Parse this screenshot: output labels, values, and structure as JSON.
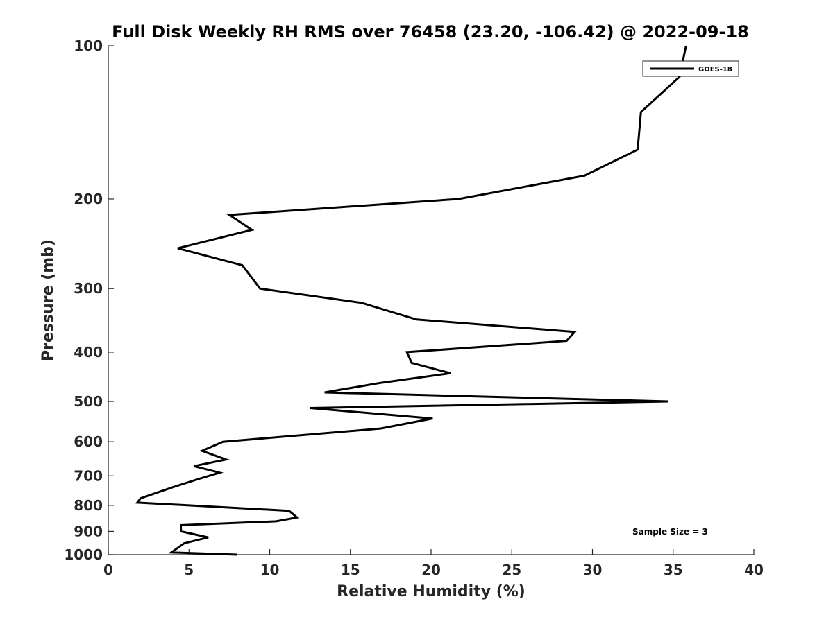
{
  "chart_data": {
    "type": "line",
    "title": "Full Disk Weekly RH RMS over 76458 (23.20, -106.42) @ 2022-09-18",
    "xlabel": "Relative Humidity (%)",
    "ylabel": "Pressure (mb)",
    "xlim": [
      0,
      40
    ],
    "ylim": [
      100,
      1000
    ],
    "y_scale": "log",
    "y_reversed": true,
    "grid": false,
    "legend_position": "top-right",
    "x_ticks": [
      "0",
      "5",
      "10",
      "15",
      "20",
      "25",
      "30",
      "35",
      "40"
    ],
    "y_ticks": [
      "100",
      "200",
      "300",
      "400",
      "500",
      "600",
      "700",
      "800",
      "900",
      "1000"
    ],
    "annotation": "Sample Size = 3",
    "series": [
      {
        "name": "GOES-18",
        "color": "#000000",
        "points": [
          [
            35.8,
            100
          ],
          [
            35.4,
            115
          ],
          [
            33.0,
            135
          ],
          [
            32.8,
            160
          ],
          [
            29.5,
            180
          ],
          [
            21.7,
            200
          ],
          [
            7.5,
            215
          ],
          [
            8.9,
            230
          ],
          [
            4.3,
            250
          ],
          [
            8.3,
            270
          ],
          [
            9.4,
            300
          ],
          [
            15.7,
            320
          ],
          [
            19.1,
            345
          ],
          [
            28.9,
            365
          ],
          [
            28.4,
            380
          ],
          [
            18.5,
            400
          ],
          [
            18.8,
            420
          ],
          [
            21.2,
            440
          ],
          [
            16.8,
            460
          ],
          [
            13.4,
            480
          ],
          [
            34.7,
            500
          ],
          [
            12.5,
            515
          ],
          [
            20.1,
            540
          ],
          [
            16.9,
            565
          ],
          [
            7.1,
            600
          ],
          [
            5.8,
            625
          ],
          [
            7.3,
            650
          ],
          [
            5.3,
            670
          ],
          [
            6.9,
            690
          ],
          [
            5.6,
            710
          ],
          [
            4.1,
            735
          ],
          [
            2.0,
            775
          ],
          [
            1.8,
            790
          ],
          [
            11.2,
            820
          ],
          [
            11.7,
            845
          ],
          [
            10.4,
            860
          ],
          [
            4.5,
            875
          ],
          [
            4.5,
            900
          ],
          [
            6.2,
            925
          ],
          [
            4.7,
            950
          ],
          [
            3.9,
            990
          ],
          [
            8.0,
            1000
          ]
        ]
      }
    ]
  }
}
